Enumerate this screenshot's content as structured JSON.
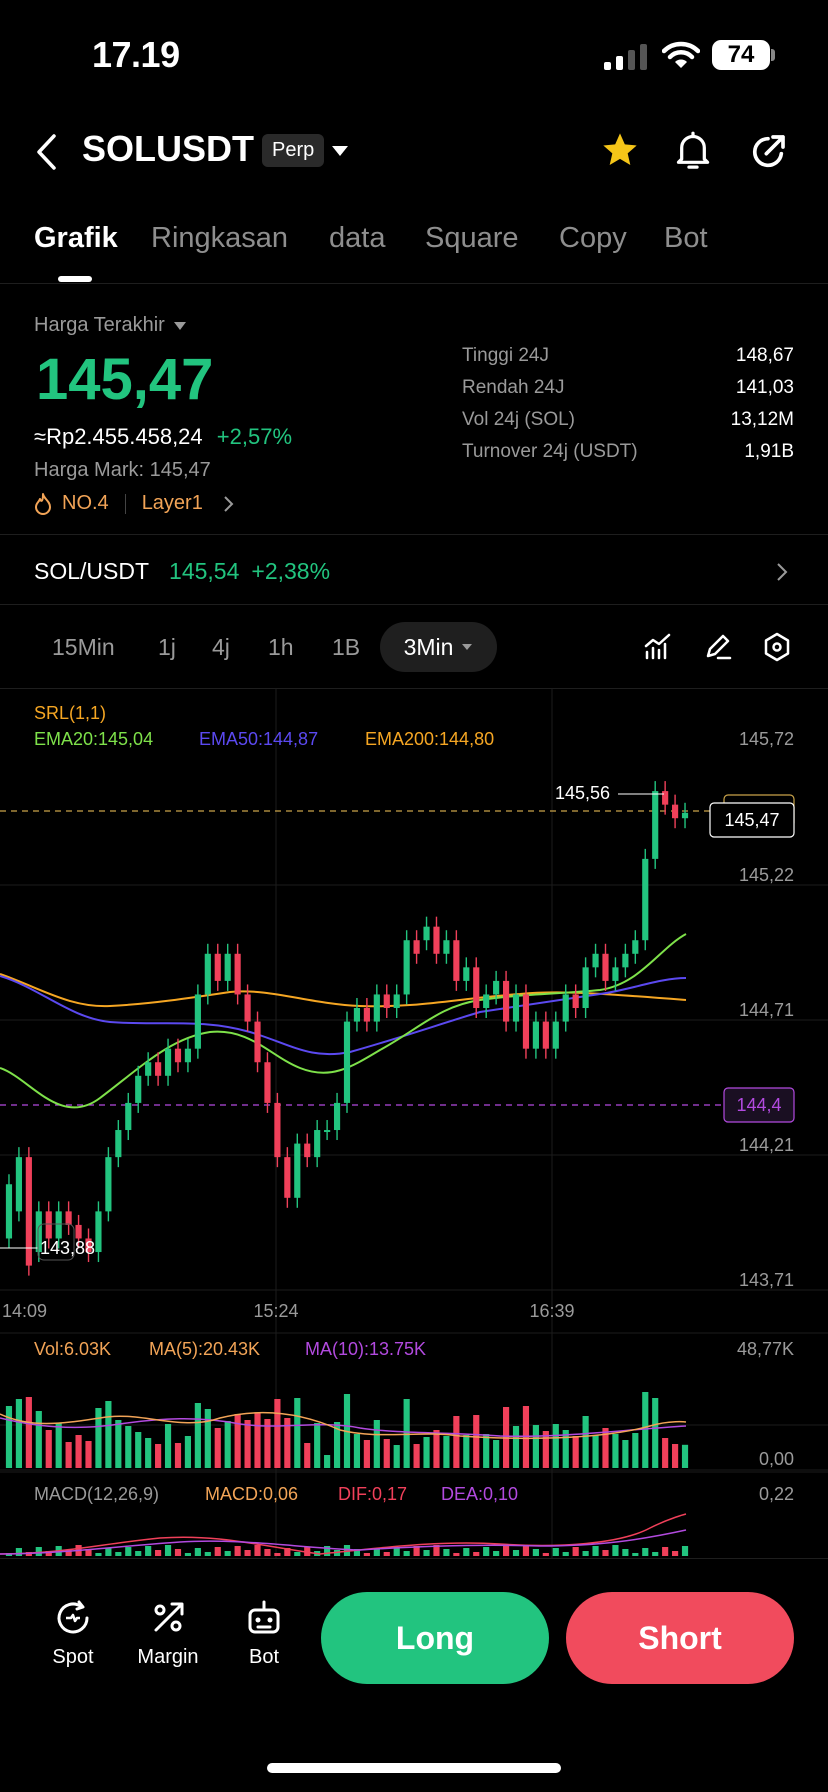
{
  "status": {
    "time": "17.19",
    "battery": "74"
  },
  "header": {
    "title": "SOLUSDT",
    "badge": "Perp"
  },
  "tabs": [
    "Grafik",
    "Ringkasan",
    "data",
    "Square",
    "Copy",
    "Bot"
  ],
  "price": {
    "selector_label": "Harga Terakhir",
    "last": "145,47",
    "fiat": "≈Rp2.455.458,24",
    "change": "+2,57%",
    "mark": "Harga Mark: 145,47",
    "rank": "NO.4",
    "category": "Layer1"
  },
  "stats": [
    {
      "label": "Tinggi 24J",
      "value": "148,67"
    },
    {
      "label": "Rendah 24J",
      "value": "141,03"
    },
    {
      "label": "Vol 24j (SOL)",
      "value": "13,12M"
    },
    {
      "label": "Turnover 24j (USDT)",
      "value": "1,91B"
    }
  ],
  "spot_pair": {
    "name": "SOL/USDT",
    "price": "145,54",
    "change": "+2,38%"
  },
  "timeframes": [
    "15Min",
    "1j",
    "4j",
    "1h",
    "1B"
  ],
  "timeframe_active": "3Min",
  "chart": {
    "indicator_srl": "SRL(1,1)",
    "ema20": "EMA20:145,04",
    "ema50": "EMA50:144,87",
    "ema200": "EMA200:144,80",
    "y_ticks": [
      "145,72",
      "145,22",
      "144,71",
      "144,21",
      "143,71"
    ],
    "current_price_tag": "145,47",
    "alert_tag": "144,4",
    "high_label": "145,56",
    "low_label": "143,88",
    "x_ticks": [
      "14:09",
      "15:24",
      "16:39"
    ],
    "colors": {
      "up": "#22c47f",
      "down": "#f0405a",
      "ema20": "#7ee14a",
      "ema50": "#5b49f0",
      "ema200": "#f5a623",
      "alert": "#b24adf"
    }
  },
  "volume": {
    "vol": "Vol:6.03K",
    "ma5": "MA(5):20.43K",
    "ma10": "MA(10):13.75K",
    "top": "48,77K",
    "bottom": "0,00"
  },
  "macd": {
    "label": "MACD(12,26,9)",
    "macd": "MACD:0,06",
    "dif": "DIF:0,17",
    "dea": "DEA:0,10",
    "top": "0,22"
  },
  "bottom_nav": {
    "spot": "Spot",
    "margin": "Margin",
    "bot": "Bot",
    "long": "Long",
    "short": "Short"
  },
  "chart_data": {
    "type": "candlestick",
    "ylim": [
      143.71,
      145.72
    ],
    "candles": [
      [
        143.9,
        144.1
      ],
      [
        144.0,
        144.2
      ],
      [
        144.2,
        143.8
      ],
      [
        143.85,
        144.0
      ],
      [
        144.0,
        143.9
      ],
      [
        143.9,
        144.0
      ],
      [
        144.0,
        143.95
      ],
      [
        143.95,
        143.9
      ],
      [
        143.9,
        143.85
      ],
      [
        143.85,
        144.0
      ],
      [
        144.0,
        144.2
      ],
      [
        144.2,
        144.3
      ],
      [
        144.3,
        144.4
      ],
      [
        144.4,
        144.5
      ],
      [
        144.5,
        144.55
      ],
      [
        144.55,
        144.5
      ],
      [
        144.5,
        144.6
      ],
      [
        144.6,
        144.55
      ],
      [
        144.55,
        144.6
      ],
      [
        144.6,
        144.8
      ],
      [
        144.8,
        144.95
      ],
      [
        144.95,
        144.85
      ],
      [
        144.85,
        144.95
      ],
      [
        144.95,
        144.8
      ],
      [
        144.8,
        144.7
      ],
      [
        144.7,
        144.55
      ],
      [
        144.55,
        144.4
      ],
      [
        144.4,
        144.2
      ],
      [
        144.2,
        144.05
      ],
      [
        144.05,
        144.25
      ],
      [
        144.25,
        144.2
      ],
      [
        144.2,
        144.3
      ],
      [
        144.3,
        144.3
      ],
      [
        144.3,
        144.4
      ],
      [
        144.4,
        144.7
      ],
      [
        144.7,
        144.75
      ],
      [
        144.75,
        144.7
      ],
      [
        144.7,
        144.8
      ],
      [
        144.8,
        144.75
      ],
      [
        144.75,
        144.8
      ],
      [
        144.8,
        145.0
      ],
      [
        145.0,
        144.95
      ],
      [
        145.0,
        145.05
      ],
      [
        145.05,
        144.95
      ],
      [
        144.95,
        145.0
      ],
      [
        145.0,
        144.85
      ],
      [
        144.85,
        144.9
      ],
      [
        144.9,
        144.75
      ],
      [
        144.75,
        144.8
      ],
      [
        144.8,
        144.85
      ],
      [
        144.85,
        144.7
      ],
      [
        144.7,
        144.8
      ],
      [
        144.8,
        144.6
      ],
      [
        144.6,
        144.7
      ],
      [
        144.7,
        144.6
      ],
      [
        144.6,
        144.7
      ],
      [
        144.7,
        144.8
      ],
      [
        144.8,
        144.75
      ],
      [
        144.75,
        144.9
      ],
      [
        144.9,
        144.95
      ],
      [
        144.95,
        144.85
      ],
      [
        144.85,
        144.9
      ],
      [
        144.9,
        144.95
      ],
      [
        144.95,
        145.0
      ],
      [
        145.0,
        145.3
      ],
      [
        145.3,
        145.55
      ],
      [
        145.55,
        145.5
      ],
      [
        145.5,
        145.45
      ],
      [
        145.45,
        145.47
      ]
    ]
  }
}
